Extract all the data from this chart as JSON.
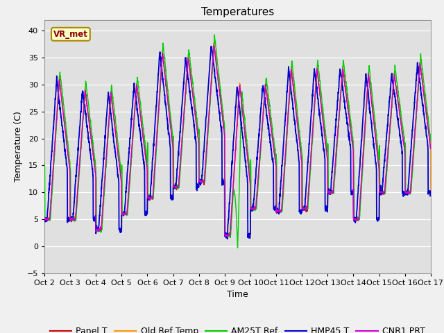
{
  "title": "Temperatures",
  "xlabel": "Time",
  "ylabel": "Temperature (C)",
  "ylim": [
    -5,
    42
  ],
  "yticks": [
    -5,
    0,
    5,
    10,
    15,
    20,
    25,
    30,
    35,
    40
  ],
  "xtick_labels": [
    "Oct 2",
    "Oct 3",
    "Oct 4",
    "Oct 5",
    "Oct 6",
    "Oct 7",
    "Oct 8",
    "Oct 9",
    "Oct 10",
    "Oct 11",
    "Oct 12",
    "Oct 13",
    "Oct 14",
    "Oct 15",
    "Oct 16",
    "Oct 17"
  ],
  "annotation_text": "VR_met",
  "series_colors": [
    "#cc0000",
    "#ff9900",
    "#00cc00",
    "#0000cc",
    "#cc00cc"
  ],
  "series_labels": [
    "Panel T",
    "Old Ref Temp",
    "AM25T Ref",
    "HMP45 T",
    "CNR1 PRT"
  ],
  "fig_bg_color": "#f0f0f0",
  "plot_bg_color": "#e0e0e0",
  "title_fontsize": 11,
  "legend_fontsize": 9,
  "tick_fontsize": 8,
  "label_fontsize": 9,
  "n_days": 15,
  "points_per_day": 144,
  "daily_mins": [
    5.0,
    5.0,
    3.0,
    6.0,
    9.0,
    11.0,
    12.0,
    2.0,
    7.0,
    6.5,
    7.0,
    10.0,
    5.0,
    10.0,
    10.0
  ],
  "daily_maxs": [
    31.0,
    29.0,
    28.5,
    30.0,
    36.0,
    35.0,
    37.5,
    30.0,
    30.0,
    33.0,
    33.0,
    33.0,
    32.0,
    32.0,
    34.0
  ],
  "peak_hour": 14.0,
  "trough_hour": 5.0
}
